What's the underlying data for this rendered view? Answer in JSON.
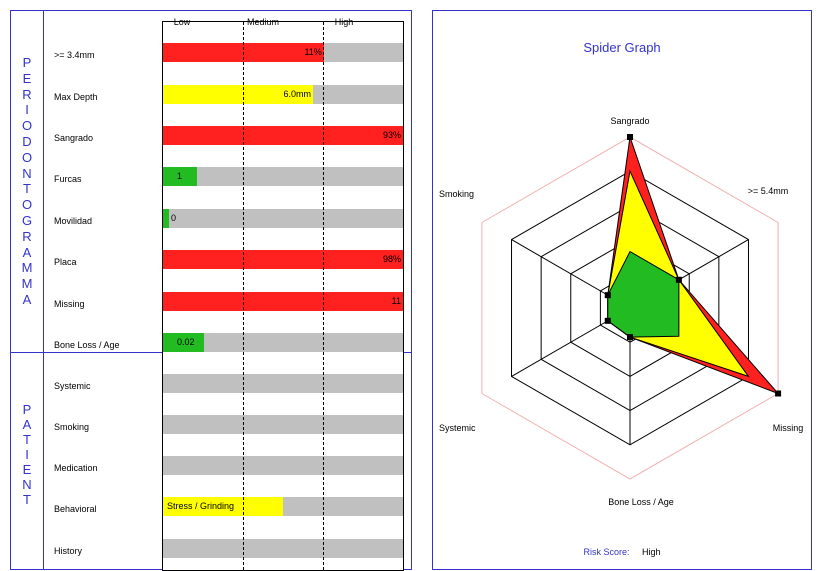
{
  "sections": [
    {
      "name": "perio",
      "letters": [
        "P",
        "E",
        "R",
        "I",
        "O",
        "D",
        "O",
        "N",
        "T",
        "O",
        "G",
        "R",
        "A",
        "M",
        "M",
        "A"
      ]
    },
    {
      "name": "patient",
      "letters": [
        "P",
        "A",
        "T",
        "I",
        "E",
        "N",
        "T"
      ]
    }
  ],
  "levels": [
    "Low",
    "Medium",
    "High"
  ],
  "colors": {
    "red": "#ff2020",
    "yellow": "#ffff00",
    "green": "#22bb22",
    "gray": "#c0c0c0",
    "accent": "#3333cc"
  },
  "rows": [
    {
      "label": ">= 3.4mm",
      "value": "11%",
      "fill": 0.67,
      "color": "red"
    },
    {
      "label": "Max Depth",
      "value": "6.0mm",
      "fill": 0.625,
      "color": "yellow"
    },
    {
      "label": "Sangrado",
      "value": "93%",
      "fill": 1.0,
      "color": "red"
    },
    {
      "label": "Furcas",
      "value": "1",
      "fill": 0.14,
      "color": "green"
    },
    {
      "label": "Movilidad",
      "value": "0",
      "fill": 0.025,
      "color": "green"
    },
    {
      "label": "Placa",
      "value": "98%",
      "fill": 1.0,
      "color": "red"
    },
    {
      "label": "Missing",
      "value": "11",
      "fill": 1.0,
      "color": "red"
    },
    {
      "label": "Bone Loss / Age",
      "value": "0.02",
      "fill": 0.17,
      "color": "green"
    },
    {
      "label": "Systemic",
      "value": "",
      "fill": 0,
      "color": "gray"
    },
    {
      "label": "Smoking",
      "value": "",
      "fill": 0,
      "color": "gray"
    },
    {
      "label": "Medication",
      "value": "",
      "fill": 0,
      "color": "gray"
    },
    {
      "label": "Behavioral",
      "value": "Stress / Grinding",
      "fill": 0.5,
      "color": "yellow"
    },
    {
      "label": "History",
      "value": "",
      "fill": 0,
      "color": "gray"
    }
  ],
  "spider": {
    "title": "Spider Graph",
    "axes": [
      "Sangrado",
      ">= 5.4mm",
      "Missing",
      "Bone Loss / Age",
      "Systemic",
      "Smoking"
    ],
    "rings": 5,
    "values": [
      1.0,
      0.33,
      1.0,
      0.17,
      0.15,
      0.15
    ]
  },
  "chart_data": {
    "type": "bar",
    "categories": [
      ">= 3.4mm",
      "Max Depth",
      "Sangrado",
      "Furcas",
      "Movilidad",
      "Placa",
      "Missing",
      "Bone Loss / Age",
      "Systemic",
      "Smoking",
      "Medication",
      "Behavioral",
      "History"
    ],
    "value_labels": [
      "11%",
      "6.0mm",
      "93%",
      "1",
      "0",
      "98%",
      "11",
      "0.02",
      "",
      "",
      "",
      "Stress / Grinding",
      ""
    ],
    "risk_level_fraction": [
      0.67,
      0.625,
      1.0,
      0.14,
      0.025,
      1.0,
      1.0,
      0.17,
      0,
      0,
      0,
      0.5,
      0
    ],
    "scale": [
      "Low",
      "Medium",
      "High"
    ]
  },
  "risk": {
    "label": "Risk Score:",
    "value": "High"
  }
}
